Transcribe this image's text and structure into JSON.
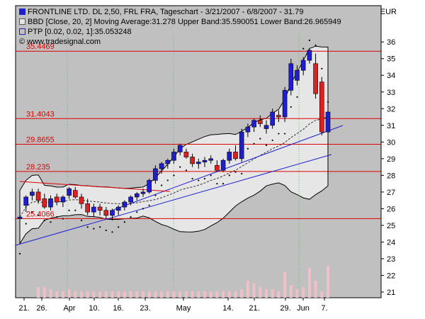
{
  "legend": {
    "main": "FRONTLINE LTD.  DL 2,50, FRL FRA, Tageschart - 3/21/2007 - 6/8/2007 - 31.79",
    "bbd": "BBD [Close, 20, 2] Moving Average:31.278 Upper Band:35.590051 Lower Band:26.965949",
    "ptp": "PTP [0.02, 0.02, 1]:35.053248",
    "source": "© www.tradesignal.com"
  },
  "currency": "EUR",
  "colors": {
    "background": "#c0c0c0",
    "band_fill": "#e6e6e6",
    "up_candle": "#1f1fd0",
    "down_candle": "#e02020",
    "resistance_line": "#e00000",
    "trend_line": "#2020d0",
    "volume": "#f0c0c8"
  },
  "chart_data": {
    "type": "candlestick",
    "y_axis": {
      "min": 21,
      "max": 36,
      "ticks": [
        21,
        22,
        23,
        24,
        25,
        26,
        27,
        28,
        29,
        30,
        31,
        32,
        33,
        34,
        35,
        36
      ],
      "position": "right"
    },
    "x_axis": {
      "tick_labels": [
        "21.",
        "26.",
        "Apr",
        "10.",
        "16.",
        "23.",
        "May",
        "14.",
        "21.",
        "29.",
        "Jun",
        "7."
      ]
    },
    "horizontal_levels": [
      {
        "label": "35.4469",
        "value": 35.4469
      },
      {
        "label": "31.4043",
        "value": 31.4043
      },
      {
        "label": "29.8655",
        "value": 29.8655
      },
      {
        "label": "28.235",
        "value": 28.235
      },
      {
        "label": "25.4066",
        "value": 25.4066
      }
    ],
    "candles": [
      {
        "o": 25.4,
        "h": 25.7,
        "l": 24.0,
        "c": 25.5
      },
      {
        "o": 26.2,
        "h": 26.8,
        "l": 25.8,
        "c": 26.7
      },
      {
        "o": 26.8,
        "h": 27.2,
        "l": 26.5,
        "c": 27.0
      },
      {
        "o": 27.0,
        "h": 27.2,
        "l": 26.3,
        "c": 26.5
      },
      {
        "o": 26.6,
        "h": 26.9,
        "l": 26.0,
        "c": 26.1
      },
      {
        "o": 26.1,
        "h": 26.8,
        "l": 25.9,
        "c": 26.6
      },
      {
        "o": 26.7,
        "h": 26.9,
        "l": 26.2,
        "c": 26.4
      },
      {
        "o": 26.4,
        "h": 26.8,
        "l": 26.1,
        "c": 26.7
      },
      {
        "o": 26.8,
        "h": 27.3,
        "l": 26.6,
        "c": 27.2
      },
      {
        "o": 27.1,
        "h": 27.3,
        "l": 26.6,
        "c": 26.7
      },
      {
        "o": 26.7,
        "h": 26.9,
        "l": 26.0,
        "c": 26.3
      },
      {
        "o": 26.3,
        "h": 26.6,
        "l": 25.6,
        "c": 25.8
      },
      {
        "o": 25.8,
        "h": 26.3,
        "l": 25.5,
        "c": 26.1
      },
      {
        "o": 26.1,
        "h": 26.3,
        "l": 25.6,
        "c": 25.9
      },
      {
        "o": 25.9,
        "h": 26.1,
        "l": 25.4,
        "c": 25.6
      },
      {
        "o": 25.6,
        "h": 26.0,
        "l": 25.3,
        "c": 25.9
      },
      {
        "o": 25.9,
        "h": 26.2,
        "l": 25.6,
        "c": 26.1
      },
      {
        "o": 26.1,
        "h": 26.5,
        "l": 25.9,
        "c": 26.4
      },
      {
        "o": 26.4,
        "h": 26.8,
        "l": 26.2,
        "c": 26.7
      },
      {
        "o": 26.7,
        "h": 27.0,
        "l": 26.5,
        "c": 26.9
      },
      {
        "o": 26.9,
        "h": 27.2,
        "l": 26.7,
        "c": 27.0
      },
      {
        "o": 27.0,
        "h": 27.8,
        "l": 26.9,
        "c": 27.7
      },
      {
        "o": 27.7,
        "h": 28.6,
        "l": 27.5,
        "c": 28.4
      },
      {
        "o": 28.4,
        "h": 28.8,
        "l": 28.1,
        "c": 28.7
      },
      {
        "o": 28.7,
        "h": 29.0,
        "l": 28.4,
        "c": 28.9
      },
      {
        "o": 28.9,
        "h": 29.6,
        "l": 28.7,
        "c": 29.4
      },
      {
        "o": 29.4,
        "h": 29.9,
        "l": 29.2,
        "c": 29.8
      },
      {
        "o": 29.4,
        "h": 29.6,
        "l": 29.0,
        "c": 29.1
      },
      {
        "o": 29.1,
        "h": 29.3,
        "l": 28.5,
        "c": 28.7
      },
      {
        "o": 28.7,
        "h": 29.0,
        "l": 28.4,
        "c": 28.8
      },
      {
        "o": 28.8,
        "h": 29.1,
        "l": 28.5,
        "c": 28.9
      },
      {
        "o": 28.9,
        "h": 29.2,
        "l": 28.7,
        "c": 29.0
      },
      {
        "o": 28.6,
        "h": 28.9,
        "l": 28.2,
        "c": 28.3
      },
      {
        "o": 28.3,
        "h": 29.0,
        "l": 28.2,
        "c": 28.9
      },
      {
        "o": 28.9,
        "h": 29.6,
        "l": 28.7,
        "c": 29.4
      },
      {
        "o": 29.4,
        "h": 29.8,
        "l": 28.9,
        "c": 29.0
      },
      {
        "o": 29.0,
        "h": 30.8,
        "l": 28.8,
        "c": 30.6
      },
      {
        "o": 30.6,
        "h": 31.1,
        "l": 30.3,
        "c": 30.9
      },
      {
        "o": 30.9,
        "h": 31.4,
        "l": 30.6,
        "c": 31.3
      },
      {
        "o": 31.3,
        "h": 31.6,
        "l": 30.9,
        "c": 31.1
      },
      {
        "o": 30.8,
        "h": 31.3,
        "l": 30.5,
        "c": 31.0
      },
      {
        "o": 31.0,
        "h": 32.0,
        "l": 30.8,
        "c": 31.8
      },
      {
        "o": 31.6,
        "h": 31.9,
        "l": 31.2,
        "c": 31.5
      },
      {
        "o": 31.5,
        "h": 33.3,
        "l": 31.2,
        "c": 33.1
      },
      {
        "o": 33.1,
        "h": 35.0,
        "l": 32.8,
        "c": 34.7
      },
      {
        "o": 33.7,
        "h": 34.6,
        "l": 33.4,
        "c": 34.3
      },
      {
        "o": 34.3,
        "h": 35.1,
        "l": 34.0,
        "c": 34.9
      },
      {
        "o": 34.9,
        "h": 35.6,
        "l": 34.7,
        "c": 35.5
      },
      {
        "o": 34.7,
        "h": 35.3,
        "l": 32.6,
        "c": 32.9
      },
      {
        "o": 33.6,
        "h": 33.9,
        "l": 30.4,
        "c": 30.6
      },
      {
        "o": 30.6,
        "h": 31.9,
        "l": 30.4,
        "c": 31.8
      }
    ],
    "volume": [
      0,
      0,
      0,
      0.5,
      0.5,
      0.4,
      0.3,
      0.3,
      0.4,
      0.3,
      0.3,
      0.3,
      0.3,
      0.3,
      0.3,
      0.3,
      0.3,
      0.3,
      0.3,
      0.3,
      0.3,
      0.3,
      0.3,
      0.3,
      0.3,
      0.3,
      0.3,
      0.3,
      0.3,
      0.3,
      0.3,
      0.3,
      0.3,
      0.3,
      0.3,
      0.3,
      0.4,
      0.8,
      0.7,
      0.5,
      0.4,
      0.4,
      0.3,
      1.2,
      0.6,
      0.4,
      0.5,
      1.4,
      0.8,
      0.3,
      1.5
    ]
  }
}
